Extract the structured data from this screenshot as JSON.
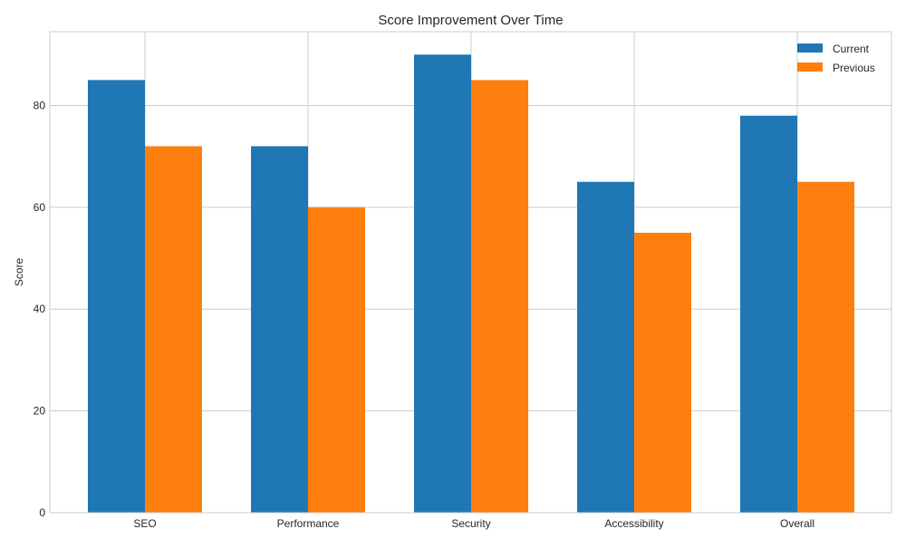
{
  "chart_data": {
    "type": "bar",
    "title": "Score Improvement Over Time",
    "xlabel": "",
    "ylabel": "Score",
    "categories": [
      "SEO",
      "Performance",
      "Security",
      "Accessibility",
      "Overall"
    ],
    "series": [
      {
        "name": "Current",
        "values": [
          85,
          72,
          90,
          65,
          78
        ],
        "color": "#1f77b4"
      },
      {
        "name": "Previous",
        "values": [
          72,
          60,
          85,
          55,
          65
        ],
        "color": "#ff7f0e"
      }
    ],
    "yticks": [
      0,
      20,
      40,
      60,
      80
    ],
    "ylim": [
      0,
      94.5
    ],
    "grid": true,
    "legend_position": "top-right"
  }
}
